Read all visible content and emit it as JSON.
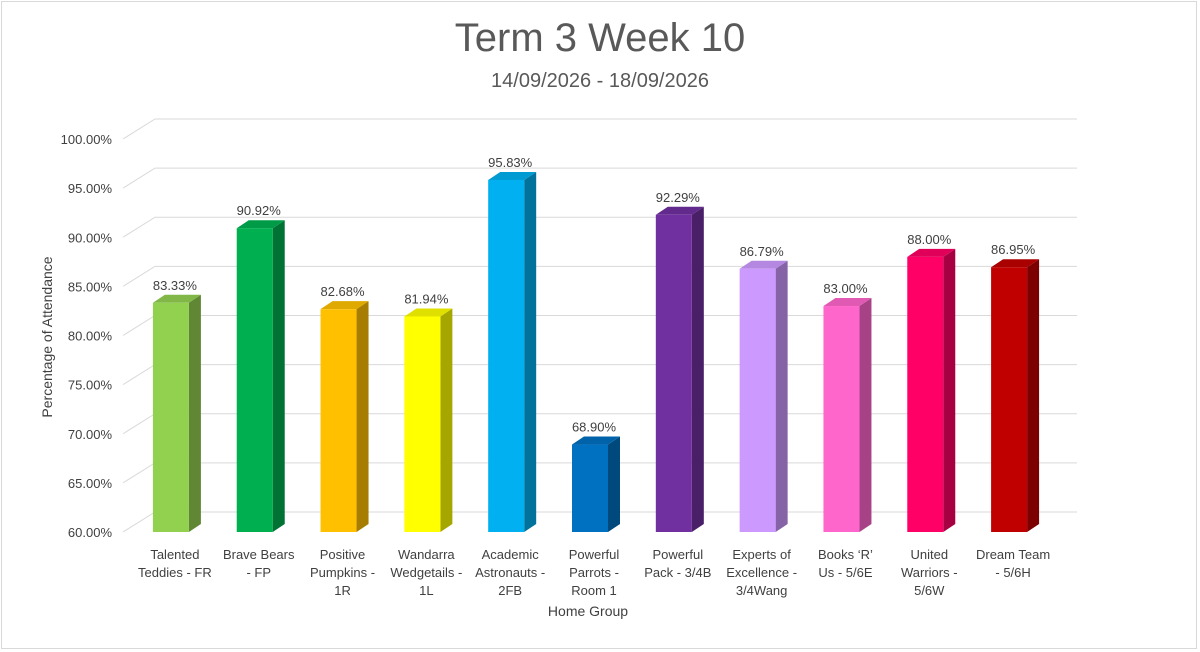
{
  "chart_data": {
    "type": "bar",
    "title": "Term 3 Week 10",
    "subtitle": "14/09/2026 - 18/09/2026",
    "xlabel": "Home Group",
    "ylabel": "Percentage of Attendance",
    "ylim": [
      60,
      100
    ],
    "yticks": [
      "60.00%",
      "65.00%",
      "70.00%",
      "75.00%",
      "80.00%",
      "85.00%",
      "90.00%",
      "95.00%",
      "100.00%"
    ],
    "grid": true,
    "style": "3d-column",
    "categories": [
      [
        "Talented",
        "Teddies - FR"
      ],
      [
        "Brave Bears",
        "- FP"
      ],
      [
        "Positive",
        "Pumpkins -",
        "1R"
      ],
      [
        "Wandarra",
        "Wedgetails -",
        "1L"
      ],
      [
        "Academic",
        "Astronauts -",
        "2FB"
      ],
      [
        "Powerful",
        "Parrots -",
        "Room 1"
      ],
      [
        "Powerful",
        "Pack - 3/4B"
      ],
      [
        "Experts of",
        "Excellence -",
        "3/4Wang"
      ],
      [
        "Books ‘R’",
        "Us - 5/6E"
      ],
      [
        "United",
        "Warriors -",
        "5/6W"
      ],
      [
        "Dream Team",
        "- 5/6H"
      ]
    ],
    "values": [
      83.33,
      90.92,
      82.68,
      81.94,
      95.83,
      68.9,
      92.29,
      86.79,
      83.0,
      88.0,
      86.95
    ],
    "value_labels": [
      "83.33%",
      "90.92%",
      "82.68%",
      "81.94%",
      "95.83%",
      "68.90%",
      "92.29%",
      "86.79%",
      "83.00%",
      "88.00%",
      "86.95%"
    ],
    "colors": [
      "#92D050",
      "#00B050",
      "#FFC000",
      "#FFFF00",
      "#00B0F0",
      "#0070C0",
      "#7030A0",
      "#CC99FF",
      "#FF66CC",
      "#FF0066",
      "#C00000"
    ]
  }
}
